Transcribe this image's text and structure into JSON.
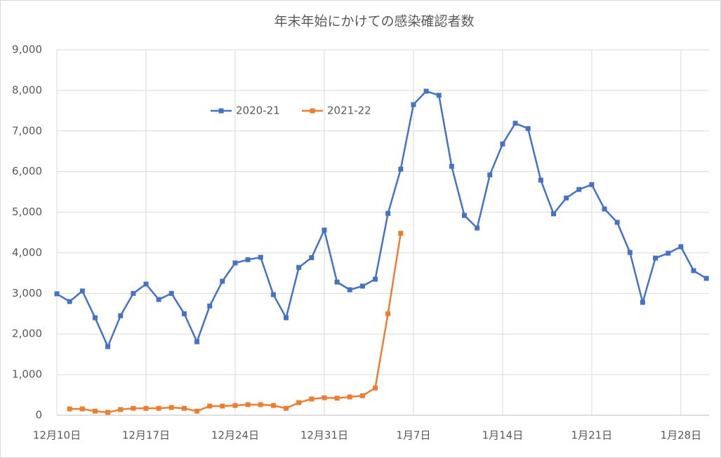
{
  "chart_data": {
    "type": "line",
    "title": "年末年始にかけての感染確認者数",
    "categories": [
      "12月10日",
      null,
      null,
      null,
      null,
      null,
      null,
      "12月17日",
      null,
      null,
      null,
      null,
      null,
      null,
      "12月24日",
      null,
      null,
      null,
      null,
      null,
      null,
      "12月31日",
      null,
      null,
      null,
      null,
      null,
      null,
      "1月7日",
      null,
      null,
      null,
      null,
      null,
      null,
      "1月14日",
      null,
      null,
      null,
      null,
      null,
      null,
      "1月21日",
      null,
      null,
      null,
      null,
      null,
      null,
      "1月28日",
      null,
      null
    ],
    "series": [
      {
        "name": "2020-21",
        "color": "#4472c4",
        "values": [
          2990,
          2800,
          3060,
          2400,
          1690,
          2450,
          3000,
          3230,
          2850,
          3000,
          2500,
          1810,
          2690,
          3300,
          3750,
          3830,
          3890,
          2970,
          2400,
          3640,
          3880,
          4560,
          3280,
          3090,
          3180,
          3350,
          4970,
          6060,
          7650,
          7980,
          7880,
          6130,
          4920,
          4610,
          5920,
          6680,
          7190,
          7060,
          5790,
          4960,
          5350,
          5560,
          5680,
          5080,
          4750,
          4010,
          2780,
          3870,
          3990,
          4150,
          3560,
          3370
        ]
      },
      {
        "name": "2021-22",
        "color": "#ed7d31",
        "values": [
          null,
          155,
          155,
          100,
          70,
          140,
          170,
          170,
          170,
          190,
          170,
          100,
          225,
          225,
          240,
          260,
          260,
          240,
          170,
          310,
          400,
          430,
          420,
          450,
          480,
          670,
          2500,
          4480,
          null,
          null,
          null,
          null,
          null,
          null,
          null,
          null,
          null,
          null,
          null,
          null,
          null,
          null,
          null,
          null,
          null,
          null,
          null,
          null,
          null,
          null,
          null,
          null
        ]
      }
    ],
    "ylim": [
      0,
      9000
    ],
    "yticks": [
      0,
      {
        "value": 1000,
        "label": "1,000"
      },
      {
        "value": 2000,
        "label": "2,000"
      },
      {
        "value": 3000,
        "label": "3,000"
      },
      {
        "value": 4000,
        "label": "4,000"
      },
      {
        "value": 5000,
        "label": "5,000"
      },
      {
        "value": 6000,
        "label": "6,000"
      },
      {
        "value": 7000,
        "label": "7,000"
      },
      {
        "value": 8000,
        "label": "8,000"
      },
      {
        "value": 9000,
        "label": "9,000"
      }
    ],
    "grid": true,
    "legend": "top"
  }
}
